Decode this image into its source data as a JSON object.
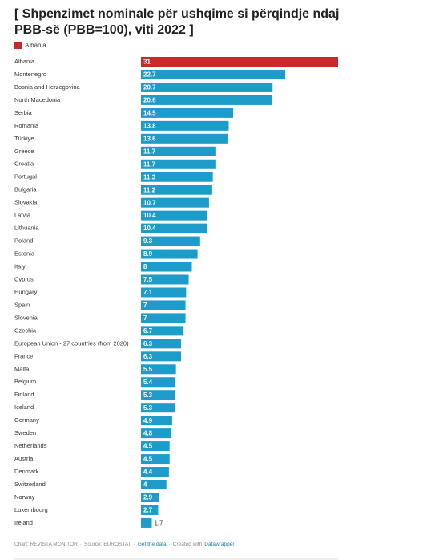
{
  "chart_data": {
    "type": "bar",
    "title": "[ Shpenzimet nominale për ushqime si përqindje ndaj PBB-së (PBB=100), viti 2022 ]",
    "categories": [
      "Albania",
      "Montenegro",
      "Bosnia and Herzegovina",
      "North Macedonia",
      "Serbia",
      "Romania",
      "Türkiye",
      "Greece",
      "Croatia",
      "Portugal",
      "Bulgaria",
      "Slovakia",
      "Latvia",
      "Lithuania",
      "Poland",
      "Estonia",
      "Italy",
      "Cyprus",
      "Hungary",
      "Spain",
      "Slovenia",
      "Czechia",
      "European Union - 27 countries (from 2020)",
      "France",
      "Malta",
      "Belgium",
      "Finland",
      "Iceland",
      "Germany",
      "Sweden",
      "Netherlands",
      "Austria",
      "Denmark",
      "Switzerland",
      "Norway",
      "Luxembourg",
      "Ireland"
    ],
    "values": [
      31,
      22.7,
      20.7,
      20.6,
      14.5,
      13.8,
      13.6,
      11.7,
      11.7,
      11.3,
      11.2,
      10.7,
      10.4,
      10.4,
      9.3,
      8.9,
      8,
      7.5,
      7.1,
      7,
      7,
      6.7,
      6.3,
      6.3,
      5.5,
      5.4,
      5.3,
      5.3,
      4.9,
      4.8,
      4.5,
      4.5,
      4.4,
      4,
      2.9,
      2.7,
      1.7
    ],
    "color": "#1d9bc9",
    "highlight": {
      "category": "Albania",
      "color": "#c72a2a"
    },
    "footer": {
      "chart": "Chart: REVISTA MONITOR",
      "source": "Source: EUROSTAT",
      "get_data": "Get the data",
      "created_with": "Created with",
      "tool": "Datawrapper",
      "separator": "·"
    }
  }
}
